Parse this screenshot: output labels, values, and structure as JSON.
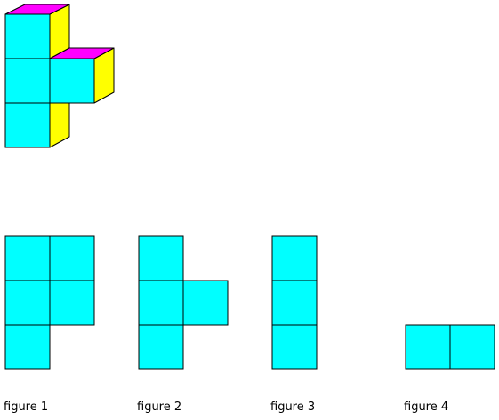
{
  "colors": {
    "front": "#00ffff",
    "top": "#ff00ff",
    "side": "#ffff00",
    "stroke": "#000000",
    "background": "#ffffff"
  },
  "figures": [
    {
      "label": "figure 1"
    },
    {
      "label": "figure 2"
    },
    {
      "label": "figure 3"
    },
    {
      "label": "figure 4"
    }
  ]
}
